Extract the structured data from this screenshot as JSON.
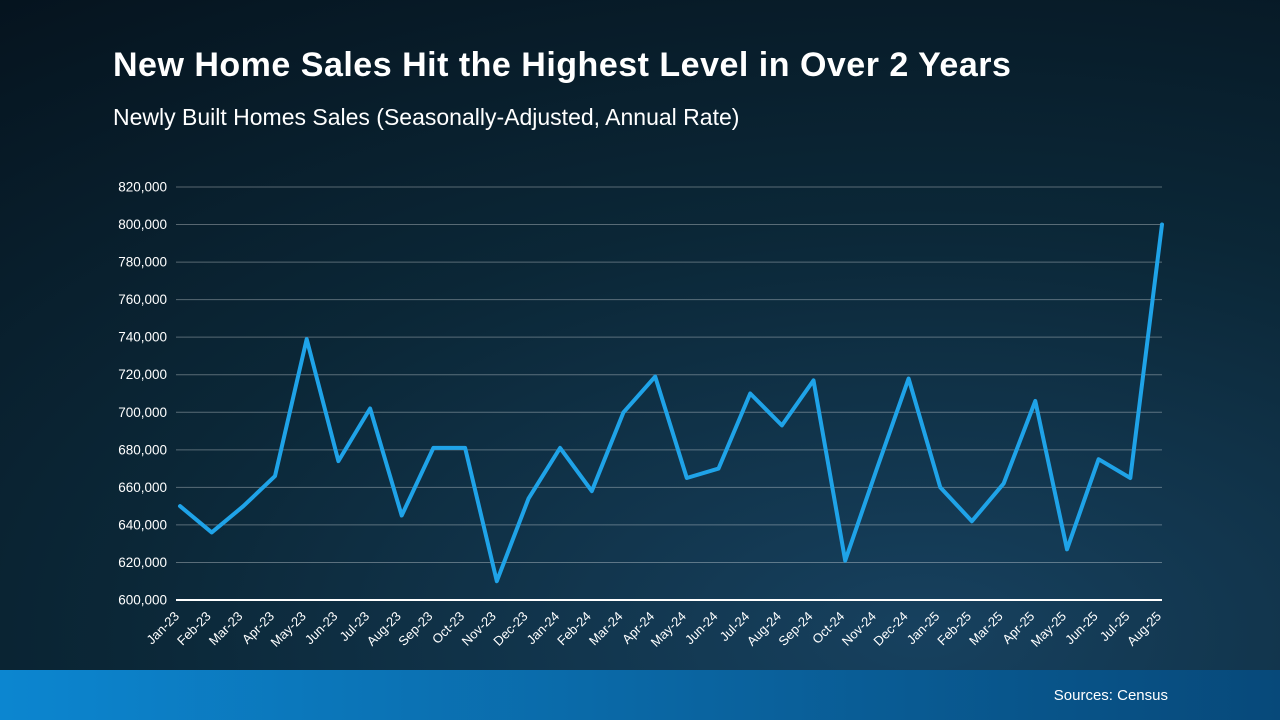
{
  "title": "New Home Sales Hit the Highest Level in Over 2 Years",
  "subtitle": "Newly Built Homes Sales (Seasonally-Adjusted, Annual Rate)",
  "footer": {
    "source_label": "Sources: Census"
  },
  "colors": {
    "line": "#1fa3e8",
    "axis": "#ffffff",
    "grid": "rgba(255,255,255,0.32)",
    "background_dark": "#04101a",
    "background_light": "#17415f",
    "footer_left": "#0c86d0",
    "footer_right": "#07497a"
  },
  "chart_data": {
    "type": "line",
    "title": "New Home Sales Hit the Highest Level in Over 2 Years",
    "subtitle": "Newly Built Homes Sales (Seasonally-Adjusted, Annual Rate)",
    "xlabel": "",
    "ylabel": "",
    "ylim": [
      600000,
      820000
    ],
    "ytick_step": 20000,
    "grid": true,
    "legend": false,
    "categories": [
      "Jan-23",
      "Feb-23",
      "Mar-23",
      "Apr-23",
      "May-23",
      "Jun-23",
      "Jul-23",
      "Aug-23",
      "Sep-23",
      "Oct-23",
      "Nov-23",
      "Dec-23",
      "Jan-24",
      "Feb-24",
      "Mar-24",
      "Apr-24",
      "May-24",
      "Jun-24",
      "Jul-24",
      "Aug-24",
      "Sep-24",
      "Oct-24",
      "Nov-24",
      "Dec-24",
      "Jan-25",
      "Feb-25",
      "Mar-25",
      "Apr-25",
      "May-25",
      "Jun-25",
      "Jul-25",
      "Aug-25"
    ],
    "values": [
      650000,
      636000,
      650000,
      666000,
      739000,
      674000,
      702000,
      645000,
      681000,
      681000,
      610000,
      654000,
      681000,
      658000,
      700000,
      719000,
      665000,
      670000,
      710000,
      693000,
      717000,
      621000,
      670000,
      718000,
      660000,
      642000,
      662000,
      706000,
      627000,
      675000,
      665000,
      800000
    ],
    "source": "Sources: Census"
  }
}
